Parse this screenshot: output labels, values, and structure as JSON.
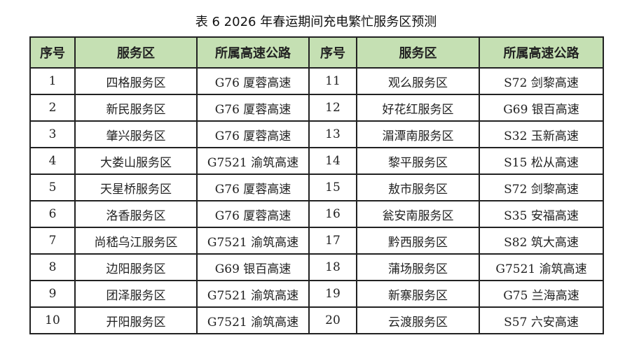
{
  "title": "表 6   2026 年春运期间充电繁忙服务区预测",
  "headers": [
    "序号",
    "服务区",
    "所属高速公路",
    "序号",
    "服务区",
    "所属高速公路"
  ],
  "rows": [
    [
      "1",
      "四格服务区",
      "G76 厦蓉高速",
      "11",
      "观么服务区",
      "S72 剑黎高速"
    ],
    [
      "2",
      "新民服务区",
      "G76 厦蓉高速",
      "12",
      "好花红服务区",
      "G69 银百高速"
    ],
    [
      "3",
      "肇兴服务区",
      "G76 厦蓉高速",
      "13",
      "湄潭南服务区",
      "S32 玉新高速"
    ],
    [
      "4",
      "大娄山服务区",
      "G7521 渝筑高速",
      "14",
      "黎平服务区",
      "S15 松从高速"
    ],
    [
      "5",
      "天星桥服务区",
      "G76 厦蓉高速",
      "15",
      "敖市服务区",
      "S72 剑黎高速"
    ],
    [
      "6",
      "洛香服务区",
      "G76 厦蓉高速",
      "16",
      "瓮安南服务区",
      "S35 安福高速"
    ],
    [
      "7",
      "尚嵇乌江服务区",
      "G7521 渝筑高速",
      "17",
      "黔西服务区",
      "S82 筑大高速"
    ],
    [
      "8",
      "边阳服务区",
      "G69 银百高速",
      "18",
      "蒲场服务区",
      "G7521 渝筑高速"
    ],
    [
      "9",
      "团泽服务区",
      "G7521 渝筑高速",
      "19",
      "新寨服务区",
      "G75 兰海高速"
    ],
    [
      "10",
      "开阳服务区",
      "G7521 渝筑高速",
      "20",
      "云渡服务区",
      "S57 六安高速"
    ]
  ],
  "colors": {
    "header_bg": "#c5e0b3",
    "border": "#222222"
  }
}
